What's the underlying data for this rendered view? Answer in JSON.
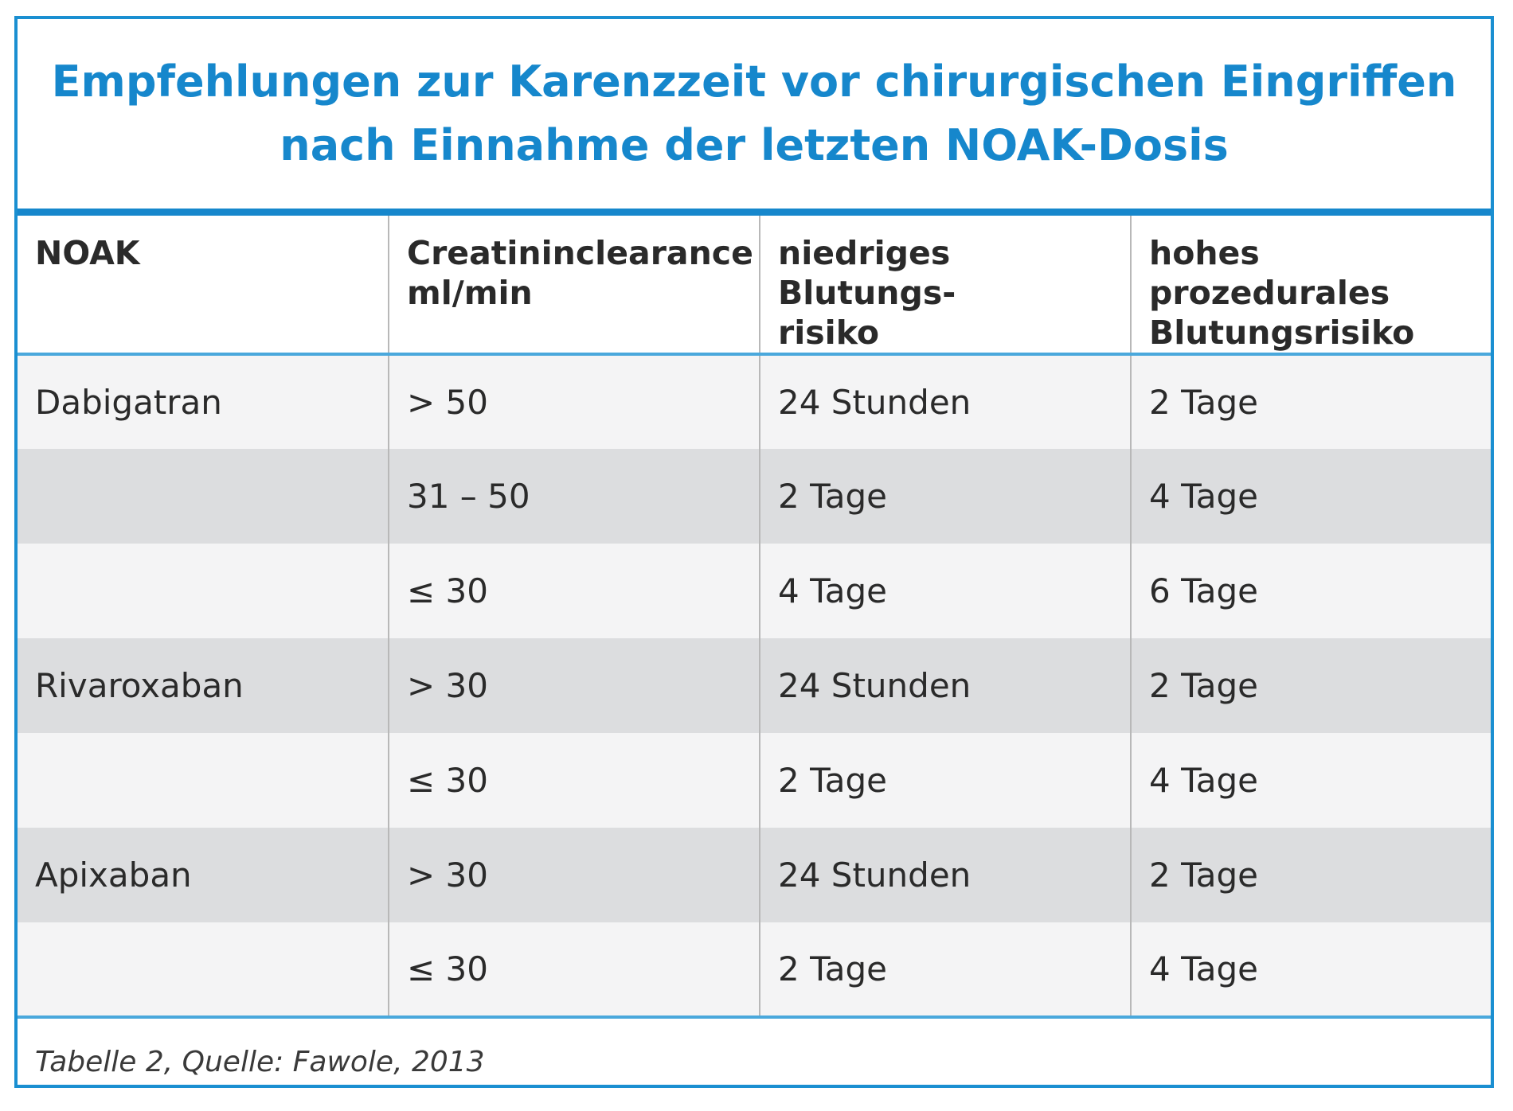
{
  "title": {
    "line1": "Empfehlungen zur Karenzzeit vor chirurgischen Eingriffen",
    "line2": "nach Einnahme der letzten NOAK-Dosis"
  },
  "table": {
    "headers": [
      {
        "line1": "NOAK",
        "line2": ""
      },
      {
        "line1": "Creatininclearance",
        "line2": "ml/min"
      },
      {
        "line1": "niedriges Blutungs-",
        "line2": "risiko"
      },
      {
        "line1": "hohes prozedurales",
        "line2": "Blutungsrisiko"
      }
    ],
    "rows": [
      [
        "Dabigatran",
        "> 50",
        "24 Stunden",
        "2 Tage"
      ],
      [
        "",
        "31 – 50",
        "2 Tage",
        "4 Tage"
      ],
      [
        "",
        "≤ 30",
        "4 Tage",
        "6 Tage"
      ],
      [
        "Rivaroxaban",
        "> 30",
        "24 Stunden",
        "2 Tage"
      ],
      [
        "",
        "≤ 30",
        "2 Tage",
        "4 Tage"
      ],
      [
        "Apixaban",
        "> 30",
        "24 Stunden",
        "2 Tage"
      ],
      [
        "",
        "≤ 30",
        "2 Tage",
        "4 Tage"
      ]
    ]
  },
  "caption": "Tabelle 2, Quelle: Fawole, 2013",
  "colors": {
    "accent": "#1687cc",
    "row_light": "#f4f4f5",
    "row_dark": "#dcdddf"
  }
}
